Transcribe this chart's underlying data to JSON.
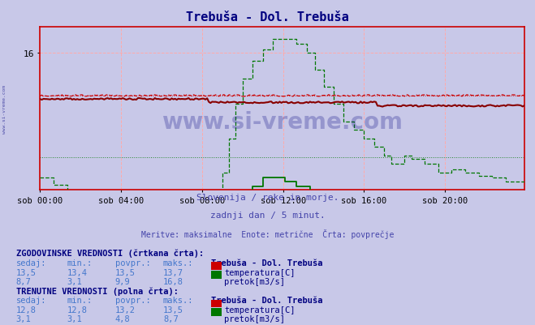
{
  "title": "Trebuša - Dol. Trebuša",
  "title_color": "#000080",
  "bg_color": "#c8c8e8",
  "plot_bg_color": "#c8c8e8",
  "subtitle1": "Slovenija / reke in morje.",
  "subtitle2": "zadnji dan / 5 minut.",
  "subtitle3": "Meritve: maksimalne  Enote: metrične  Črta: povprečje",
  "subtitle_color": "#4444aa",
  "xlabel_ticks": [
    "sob 00:00",
    "sob 04:00",
    "sob 08:00",
    "sob 12:00",
    "sob 16:00",
    "sob 20:00"
  ],
  "xlabel_tick_positions": [
    0,
    48,
    96,
    144,
    192,
    240
  ],
  "ylim_min": 8.0,
  "ylim_max": 17.0,
  "ytick_val": 16,
  "n_points": 288,
  "temp_hist_avg": 13.5,
  "temp_hist_min": 13.4,
  "temp_hist_max": 13.7,
  "temp_curr_avg": 13.2,
  "temp_curr_min": 12.8,
  "temp_curr_max": 13.5,
  "flow_hist_avg": 9.9,
  "flow_hist_min": 3.1,
  "flow_hist_max": 16.8,
  "flow_curr_avg": 4.8,
  "flow_curr_min": 3.1,
  "flow_curr_max": 8.7,
  "temp_color": "#cc0000",
  "flow_color": "#007700",
  "watermark_text": "www.si-vreme.com",
  "watermark_color": "#000080",
  "watermark_alpha": 0.25,
  "left_label": "www.si-vreme.com",
  "left_label_color": "#000080",
  "grid_color_v": "#ff8888",
  "grid_color_h": "#ff8888",
  "table": {
    "hist_label": "ZGODOVINSKE VREDNOSTI (črtkana črta):",
    "curr_label": "TRENUTNE VREDNOSTI (polna črta):",
    "col_headers": [
      "sedaj:",
      "min.:",
      "povpr.:",
      "maks.:"
    ],
    "station_label": "Trebuša - Dol. Trebuša",
    "hist_temp": [
      "13,5",
      "13,4",
      "13,5",
      "13,7"
    ],
    "hist_flow": [
      "8,7",
      "3,1",
      "9,9",
      "16,8"
    ],
    "curr_temp": [
      "12,8",
      "12,8",
      "13,2",
      "13,5"
    ],
    "curr_flow": [
      "3,1",
      "3,1",
      "4,8",
      "8,7"
    ],
    "temp_label": "temperatura[C]",
    "flow_label": "pretok[m3/s]"
  }
}
